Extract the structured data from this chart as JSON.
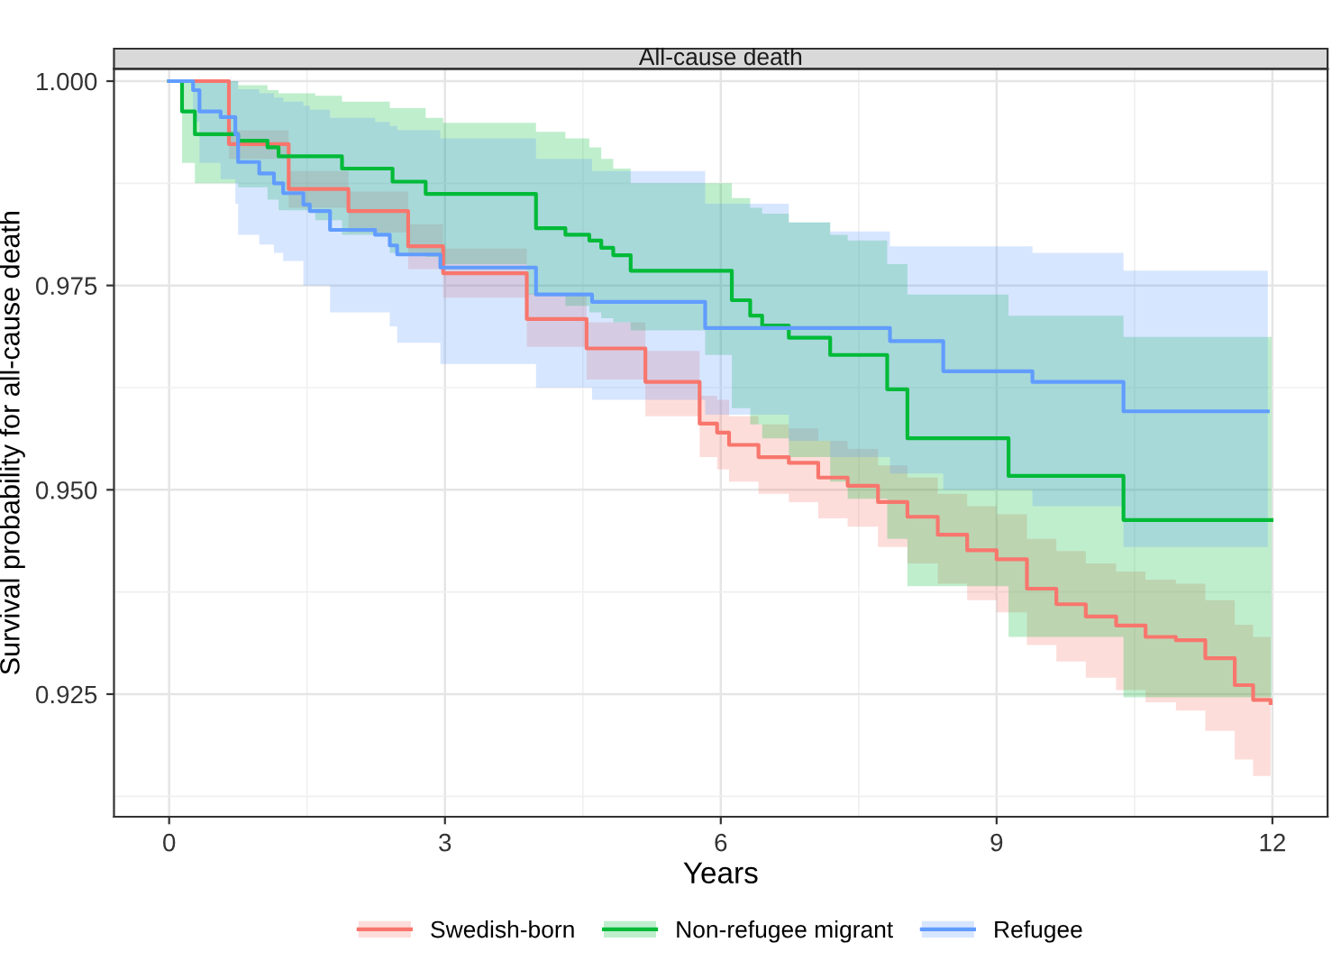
{
  "chart_data": {
    "type": "step",
    "title": "All-cause death",
    "xlabel": "Years",
    "ylabel": "Survival probability for all-cause death",
    "xlim": [
      -0.6,
      12.6
    ],
    "xticks": [
      0,
      3,
      6,
      9,
      12
    ],
    "ylim": [
      0.91,
      1.0015
    ],
    "yticks": [
      {
        "value": 1.0,
        "label": "1.000"
      },
      {
        "value": 0.975,
        "label": "0.975"
      },
      {
        "value": 0.95,
        "label": "0.950"
      },
      {
        "value": 0.925,
        "label": "0.925"
      }
    ],
    "grid": true,
    "legend": "bottom",
    "line_style": "solid",
    "marker": "none",
    "series": [
      {
        "name": "Swedish-born",
        "color": "#f8766d",
        "x": [
          0,
          0.65,
          1.3,
          1.95,
          2.6,
          2.98,
          3.89,
          4.54,
          5.18,
          5.77,
          5.96,
          6.09,
          6.41,
          6.74,
          7.06,
          7.38,
          7.71,
          8.03,
          8.36,
          8.68,
          9.0,
          9.33,
          9.65,
          9.97,
          10.3,
          10.62,
          10.95,
          11.27,
          11.59,
          11.79,
          11.98
        ],
        "values": [
          1.0,
          0.9923,
          0.9868,
          0.9841,
          0.9798,
          0.9765,
          0.9709,
          0.9673,
          0.9632,
          0.9581,
          0.957,
          0.9555,
          0.954,
          0.9533,
          0.9515,
          0.9505,
          0.9485,
          0.9467,
          0.9445,
          0.9426,
          0.9415,
          0.9379,
          0.936,
          0.9345,
          0.9334,
          0.932,
          0.9316,
          0.9294,
          0.9261,
          0.9243,
          0.9239
        ],
        "lower": [
          1.0,
          0.9905,
          0.9845,
          0.9815,
          0.977,
          0.9735,
          0.9675,
          0.9635,
          0.959,
          0.954,
          0.9525,
          0.951,
          0.9495,
          0.9485,
          0.9465,
          0.9455,
          0.943,
          0.941,
          0.9385,
          0.9365,
          0.935,
          0.931,
          0.929,
          0.927,
          0.9255,
          0.924,
          0.923,
          0.9205,
          0.917,
          0.915,
          0.9143
        ],
        "upper": [
          1.0,
          0.994,
          0.989,
          0.9865,
          0.9825,
          0.9795,
          0.974,
          0.9705,
          0.967,
          0.9615,
          0.961,
          0.959,
          0.958,
          0.9575,
          0.956,
          0.955,
          0.953,
          0.9515,
          0.9495,
          0.948,
          0.947,
          0.944,
          0.9425,
          0.941,
          0.94,
          0.939,
          0.9385,
          0.9365,
          0.9335,
          0.932,
          0.9315
        ]
      },
      {
        "name": "Non-refugee migrant",
        "color": "#00ba38",
        "x": [
          0,
          0.14,
          0.28,
          0.65,
          0.75,
          1.07,
          1.19,
          1.59,
          1.88,
          2.4,
          2.43,
          2.79,
          2.98,
          3.89,
          3.99,
          4.31,
          4.57,
          4.7,
          4.83,
          5.02,
          5.83,
          6.12,
          6.32,
          6.45,
          6.74,
          7.19,
          7.38,
          7.81,
          8.03,
          9.13,
          10.38,
          11.99
        ],
        "values": [
          1.0,
          0.9963,
          0.9935,
          0.9935,
          0.9927,
          0.9919,
          0.9908,
          0.9908,
          0.9893,
          0.9893,
          0.9877,
          0.9862,
          0.9862,
          0.9862,
          0.982,
          0.9812,
          0.9805,
          0.9796,
          0.9787,
          0.9768,
          0.9768,
          0.9732,
          0.9713,
          0.9701,
          0.9686,
          0.9665,
          0.9665,
          0.9623,
          0.9563,
          0.9517,
          0.9463,
          0.9463
        ],
        "lower": [
          1.0,
          0.99,
          0.9875,
          0.9875,
          0.987,
          0.9855,
          0.9842,
          0.983,
          0.9812,
          0.979,
          0.979,
          0.9785,
          0.9776,
          0.9739,
          0.9739,
          0.9725,
          0.9717,
          0.971,
          0.9705,
          0.9695,
          0.9665,
          0.96,
          0.958,
          0.9563,
          0.954,
          0.951,
          0.9489,
          0.944,
          0.9382,
          0.932,
          0.9246,
          0.9246
        ],
        "upper": [
          1.0,
          1.0,
          1.0,
          1.0,
          0.9995,
          0.9989,
          0.9985,
          0.9982,
          0.9975,
          0.9967,
          0.9967,
          0.9955,
          0.9949,
          0.9949,
          0.9938,
          0.993,
          0.9919,
          0.9905,
          0.9893,
          0.9875,
          0.9875,
          0.9857,
          0.9845,
          0.9838,
          0.9827,
          0.9812,
          0.9805,
          0.9776,
          0.9739,
          0.9713,
          0.9687,
          0.9687
        ]
      },
      {
        "name": "Refugee",
        "color": "#619cff",
        "x": [
          0,
          0.26,
          0.33,
          0.56,
          0.72,
          0.75,
          0.98,
          1.14,
          1.24,
          1.46,
          1.53,
          1.75,
          2.24,
          2.4,
          2.48,
          2.95,
          3.99,
          4.6,
          5.83,
          6.74,
          7.19,
          7.84,
          8.42,
          9.39,
          10.38,
          11.95
        ],
        "values": [
          1.0,
          0.9989,
          0.9963,
          0.9956,
          0.9935,
          0.9901,
          0.9887,
          0.9875,
          0.9863,
          0.9849,
          0.9841,
          0.9818,
          0.9812,
          0.9799,
          0.9788,
          0.9772,
          0.9739,
          0.973,
          0.9698,
          0.9698,
          0.9698,
          0.9682,
          0.9645,
          0.9632,
          0.9596,
          0.9596
        ],
        "lower": [
          1.0,
          0.995,
          0.99,
          0.988,
          0.985,
          0.9812,
          0.98,
          0.979,
          0.978,
          0.975,
          0.975,
          0.9717,
          0.9717,
          0.97,
          0.968,
          0.9654,
          0.9625,
          0.961,
          0.9592,
          0.956,
          0.954,
          0.952,
          0.95,
          0.948,
          0.943,
          0.943
        ],
        "upper": [
          1.0,
          1.0,
          1.0,
          1.0,
          1.0,
          0.999,
          0.9985,
          0.998,
          0.9975,
          0.997,
          0.9965,
          0.9955,
          0.995,
          0.9945,
          0.994,
          0.993,
          0.9905,
          0.989,
          0.985,
          0.9827,
          0.9816,
          0.9798,
          0.9798,
          0.979,
          0.9768,
          0.9768
        ]
      }
    ]
  }
}
